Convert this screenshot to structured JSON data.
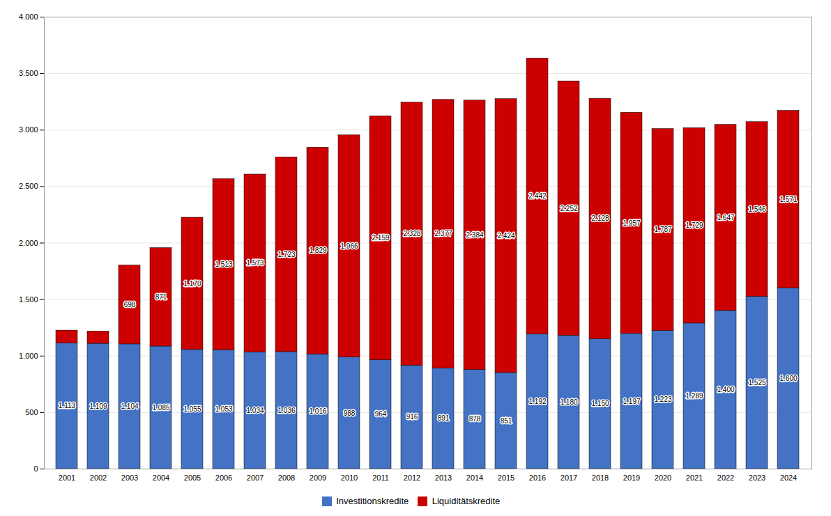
{
  "chart_data": {
    "type": "bar",
    "stacked": true,
    "categories": [
      "2001",
      "2002",
      "2003",
      "2004",
      "2005",
      "2006",
      "2007",
      "2008",
      "2009",
      "2010",
      "2011",
      "2012",
      "2013",
      "2014",
      "2015",
      "2016",
      "2017",
      "2018",
      "2019",
      "2020",
      "2021",
      "2022",
      "2023",
      "2024"
    ],
    "series": [
      {
        "name": "Investitionskredite",
        "color": "#4472C4",
        "values": [
          1113,
          1109,
          1104,
          1085,
          1055,
          1053,
          1034,
          1036,
          1016,
          988,
          964,
          916,
          891,
          878,
          851,
          1192,
          1180,
          1150,
          1197,
          1223,
          1289,
          1400,
          1525,
          1600
        ],
        "value_labels": [
          "1.113",
          "1.109",
          "1.104",
          "1.085",
          "1.055",
          "1.053",
          "1.034",
          "1.036",
          "1.016",
          "988",
          "964",
          "916",
          "891",
          "878",
          "851",
          "1.192",
          "1.180",
          "1.150",
          "1.197",
          "1.223",
          "1.289",
          "1.400",
          "1.525",
          "1.600"
        ]
      },
      {
        "name": "Liquiditätskredite",
        "color": "#CC0000",
        "values": [
          113,
          109,
          698,
          871,
          1170,
          1513,
          1573,
          1723,
          1829,
          1966,
          2159,
          2328,
          2377,
          2384,
          2424,
          2442,
          2252,
          2128,
          1957,
          1787,
          1729,
          1647,
          1546,
          1571
        ],
        "value_labels": [
          null,
          null,
          "698",
          "871",
          "1.170",
          "1.513",
          "1.573",
          "1.723",
          "1.829",
          "1.966",
          "2.159",
          "2.328",
          "2.377",
          "2.384",
          "2.424",
          "2.442",
          "2.252",
          "2.128",
          "1.957",
          "1.787",
          "1.729",
          "1.647",
          "1.546",
          "1.571"
        ]
      }
    ],
    "ylim": [
      0,
      4000
    ],
    "yticks": [
      0,
      500,
      {
        "value": 1000,
        "label": "1.000"
      },
      {
        "value": 1500,
        "label": "1.500"
      },
      {
        "value": 2000,
        "label": "2.000"
      },
      {
        "value": 2500,
        "label": "2.500"
      },
      {
        "value": 3000,
        "label": "3.000"
      },
      {
        "value": 3500,
        "label": "3.500"
      },
      {
        "value": 4000,
        "label": "4.000"
      }
    ],
    "grid": true,
    "legend": "bottom",
    "data_labels": true
  }
}
